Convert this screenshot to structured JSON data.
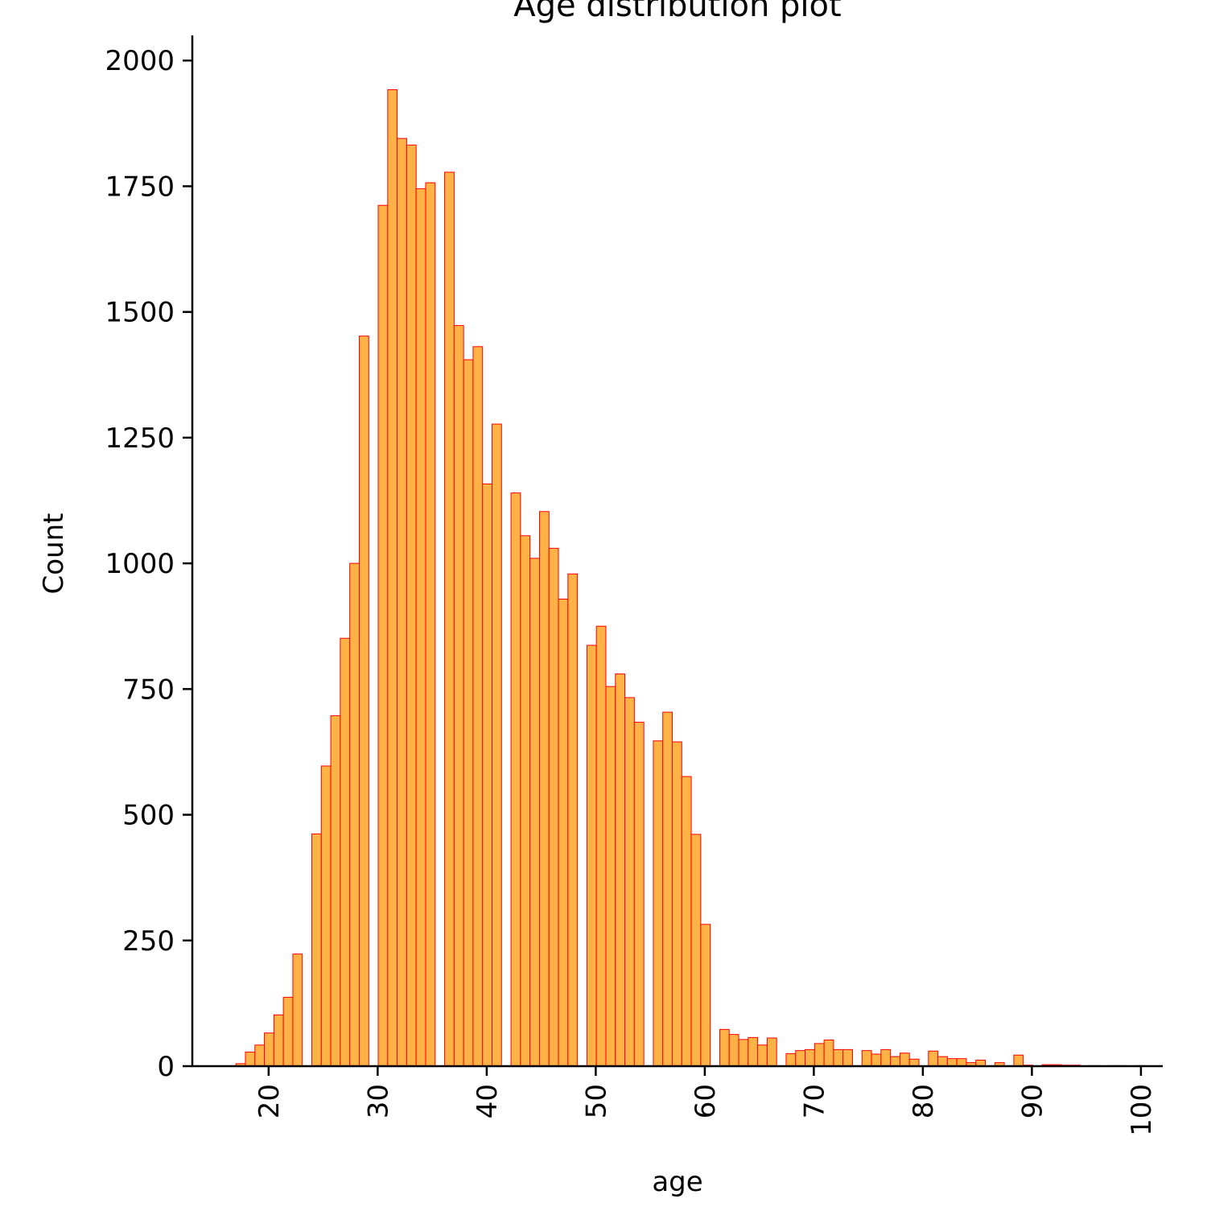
{
  "chart_data": {
    "type": "bar",
    "title": "Age distribution plot",
    "xlabel": "age",
    "ylabel": "Count",
    "xlim": [
      13,
      102
    ],
    "ylim": [
      0,
      2050
    ],
    "grid": false,
    "legend": "none",
    "bar_fill": "#FFB347",
    "bar_edge": "#FF0000",
    "x_ticks": [
      {
        "value": 20,
        "label": "20"
      },
      {
        "value": 30,
        "label": "30"
      },
      {
        "value": 40,
        "label": "40"
      },
      {
        "value": 50,
        "label": "50"
      },
      {
        "value": 60,
        "label": "60"
      },
      {
        "value": 70,
        "label": "70"
      },
      {
        "value": 80,
        "label": "80"
      },
      {
        "value": 90,
        "label": "90"
      },
      {
        "value": 100,
        "label": "100"
      }
    ],
    "y_ticks": [
      {
        "value": 0,
        "label": "0"
      },
      {
        "value": 250,
        "label": "250"
      },
      {
        "value": 500,
        "label": "500"
      },
      {
        "value": 750,
        "label": "750"
      },
      {
        "value": 1000,
        "label": "1000"
      },
      {
        "value": 1250,
        "label": "1250"
      },
      {
        "value": 1500,
        "label": "1500"
      },
      {
        "value": 1750,
        "label": "1750"
      },
      {
        "value": 2000,
        "label": "2000"
      }
    ],
    "bin_edges": [
      17,
      17.87,
      18.74,
      19.61,
      20.48,
      21.35,
      22.22,
      23.09,
      23.96,
      24.83,
      25.7,
      26.57,
      27.44,
      28.31,
      29.18,
      30.05,
      30.92,
      31.79,
      32.66,
      33.53,
      34.4,
      35.27,
      36.14,
      37.01,
      37.88,
      38.75,
      39.62,
      40.49,
      41.36,
      42.23,
      43.1,
      43.97,
      44.84,
      45.71,
      46.58,
      47.45,
      48.32,
      49.19,
      50.06,
      50.93,
      51.8,
      52.67,
      53.54,
      54.41,
      55.28,
      56.15,
      57.02,
      57.89,
      58.76,
      59.63,
      60.5,
      61.37,
      62.24,
      63.11,
      63.98,
      64.85,
      65.72,
      66.59,
      67.46,
      68.33,
      69.2,
      70.07,
      70.94,
      71.81,
      72.68,
      73.55,
      74.42,
      75.29,
      76.16,
      77.03,
      77.9,
      78.77,
      79.64,
      80.51,
      81.38,
      82.25,
      83.12,
      83.99,
      84.86,
      85.73,
      86.6,
      87.47,
      88.34,
      89.21,
      90.08,
      90.95,
      91.82,
      92.69,
      93.56,
      94.43,
      95.3,
      96.17,
      97.04,
      97.91,
      98.78,
      99.65,
      100.52
    ],
    "values": [
      5,
      28,
      42,
      66,
      102,
      137,
      223,
      0,
      462,
      597,
      697,
      851,
      1000,
      1452,
      0,
      1712,
      1942,
      1845,
      1832,
      1745,
      1757,
      0,
      1778,
      1473,
      1405,
      1431,
      1158,
      1277,
      0,
      1140,
      1055,
      1010,
      1103,
      1030,
      929,
      979,
      0,
      837,
      875,
      755,
      780,
      733,
      684,
      0,
      647,
      704,
      645,
      576,
      461,
      282,
      0,
      73,
      63,
      53,
      57,
      42,
      56,
      0,
      25,
      31,
      33,
      45,
      52,
      33,
      33,
      0,
      31,
      24,
      33,
      19,
      26,
      14,
      0,
      30,
      19,
      15,
      15,
      7,
      12,
      0,
      7,
      0,
      22,
      2,
      0,
      3,
      3,
      2,
      2,
      0,
      1,
      0,
      1,
      1,
      0,
      1
    ]
  }
}
